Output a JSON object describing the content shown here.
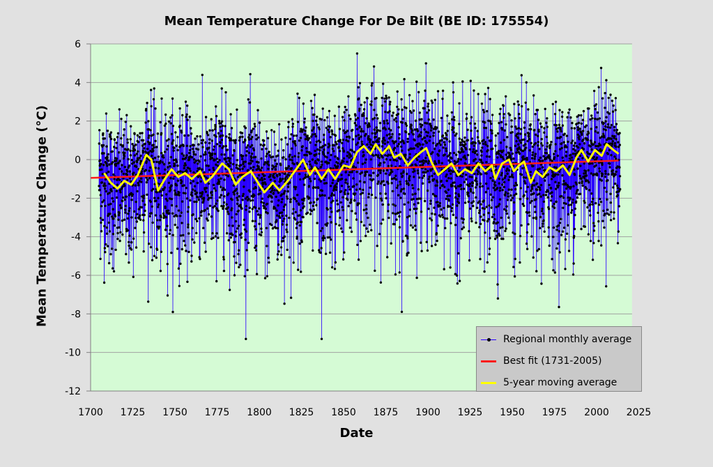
{
  "chart_data": {
    "type": "line",
    "title": "Mean Temperature Change For De Bilt (BE ID: 175554)",
    "xlabel": "Date",
    "ylabel": "Mean  Temperature  Change  (°C)",
    "xlim": [
      1700,
      2021
    ],
    "ylim": [
      -12,
      6
    ],
    "x_ticks": [
      "1700",
      "1725",
      "1750",
      "1775",
      "1800",
      "1825",
      "1850",
      "1875",
      "1900",
      "1925",
      "1950",
      "1975",
      "2000",
      "2025"
    ],
    "y_ticks": [
      "6",
      "4",
      "2",
      "0",
      "-2",
      "-4",
      "-6",
      "-8",
      "-10",
      "-12"
    ],
    "grid": "horizontal",
    "background_color": "#d5fbd5",
    "legend_position": "bottom-right",
    "series": [
      {
        "name": "Regional monthly average",
        "color": "#2a00ff",
        "marker": "black-dot",
        "x_range": [
          1705,
          2013
        ],
        "max": {
          "x": 1858,
          "y": 5.5
        },
        "min": {
          "x": 1837,
          "y": -9.3
        }
      },
      {
        "name": "Best fit (1731-2005)",
        "color": "#ff1a1a",
        "x": [
          1700,
          2013
        ],
        "y": [
          -0.95,
          -0.05
        ]
      },
      {
        "name": "5-year moving average",
        "color": "#ffff00",
        "x": [
          1708,
          1712,
          1716,
          1720,
          1724,
          1728,
          1733,
          1736,
          1740,
          1744,
          1748,
          1752,
          1756,
          1760,
          1765,
          1768,
          1772,
          1778,
          1782,
          1786,
          1790,
          1795,
          1800,
          1803,
          1808,
          1812,
          1817,
          1821,
          1826,
          1830,
          1833,
          1837,
          1841,
          1845,
          1850,
          1854,
          1858,
          1862,
          1866,
          1869,
          1873,
          1877,
          1880,
          1884,
          1888,
          1892,
          1896,
          1899,
          1902,
          1906,
          1910,
          1914,
          1918,
          1922,
          1926,
          1930,
          1934,
          1938,
          1940,
          1944,
          1948,
          1951,
          1954,
          1957,
          1961,
          1964,
          1968,
          1972,
          1976,
          1980,
          1984,
          1988,
          1991,
          1995,
          1999,
          2003,
          2006,
          2010,
          2013
        ],
        "y": [
          -0.7,
          -1.2,
          -1.5,
          -1.1,
          -1.3,
          -0.8,
          0.25,
          0.0,
          -1.6,
          -1.0,
          -0.5,
          -0.9,
          -0.7,
          -1.0,
          -0.6,
          -1.2,
          -0.9,
          -0.2,
          -0.5,
          -1.3,
          -0.9,
          -0.6,
          -1.3,
          -1.7,
          -1.2,
          -1.6,
          -1.1,
          -0.6,
          0.0,
          -0.8,
          -0.4,
          -1.0,
          -0.5,
          -1.0,
          -0.3,
          -0.4,
          0.4,
          0.7,
          0.3,
          0.8,
          0.3,
          0.7,
          0.1,
          0.3,
          -0.3,
          0.1,
          0.4,
          0.6,
          -0.1,
          -0.8,
          -0.5,
          -0.2,
          -0.8,
          -0.5,
          -0.7,
          -0.2,
          -0.6,
          -0.3,
          -1.0,
          -0.2,
          0.0,
          -0.6,
          -0.3,
          -0.1,
          -1.2,
          -0.6,
          -0.9,
          -0.4,
          -0.6,
          -0.3,
          -0.8,
          0.1,
          0.5,
          -0.1,
          0.5,
          0.2,
          0.8,
          0.5,
          0.3
        ]
      }
    ]
  }
}
